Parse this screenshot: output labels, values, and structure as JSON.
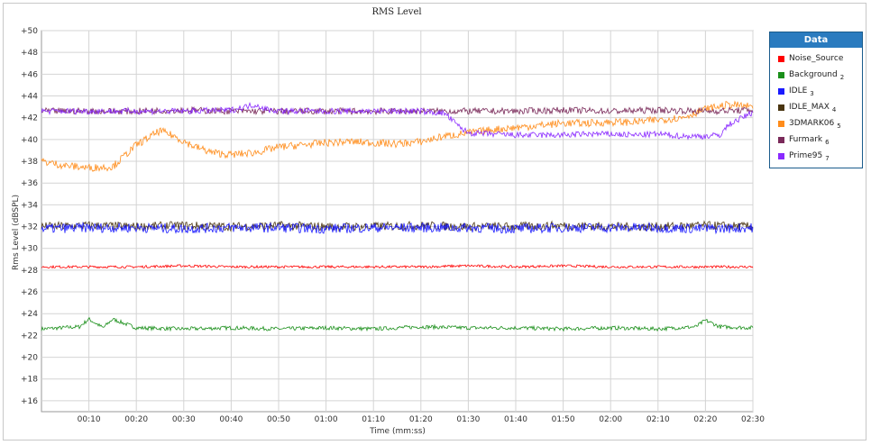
{
  "chart_data": {
    "type": "line",
    "title": "RMS Level",
    "xlabel": "Time (mm:ss)",
    "ylabel": "Rms Level (dBSPL)",
    "xlim": [
      0,
      150
    ],
    "ylim": [
      15,
      50
    ],
    "x_tick_values": [
      10,
      20,
      30,
      40,
      50,
      60,
      70,
      80,
      90,
      100,
      110,
      120,
      130,
      140,
      150
    ],
    "x_tick_labels": [
      "00:10",
      "00:20",
      "00:30",
      "00:40",
      "00:50",
      "01:00",
      "01:10",
      "01:20",
      "01:30",
      "01:40",
      "01:50",
      "02:00",
      "02:10",
      "02:20",
      "02:30"
    ],
    "y_tick_values": [
      16,
      18,
      20,
      22,
      24,
      26,
      28,
      30,
      32,
      34,
      36,
      38,
      40,
      42,
      44,
      46,
      48,
      50
    ],
    "y_tick_labels": [
      "+16",
      "+18",
      "+20",
      "+22",
      "+24",
      "+26",
      "+28",
      "+30",
      "+32",
      "+34",
      "+36",
      "+38",
      "+40",
      "+42",
      "+44",
      "+46",
      "+48",
      "+50"
    ],
    "grid": true,
    "legend_position": "right",
    "legend_title": "Data",
    "series": [
      {
        "name": "Noise_Source",
        "index": "",
        "color": "#ff0000",
        "x": [
          0,
          10,
          20,
          30,
          40,
          50,
          60,
          70,
          80,
          90,
          100,
          110,
          120,
          130,
          140,
          150
        ],
        "y": [
          28.3,
          28.3,
          28.3,
          28.4,
          28.3,
          28.3,
          28.3,
          28.3,
          28.3,
          28.4,
          28.3,
          28.4,
          28.3,
          28.3,
          28.3,
          28.3
        ]
      },
      {
        "name": "Background",
        "index": "2",
        "color": "#1a8f1a",
        "x": [
          0,
          8,
          10,
          13,
          15,
          20,
          30,
          40,
          50,
          60,
          70,
          80,
          90,
          100,
          110,
          120,
          130,
          138,
          140,
          143,
          150
        ],
        "y": [
          22.6,
          22.8,
          23.5,
          22.7,
          23.5,
          22.7,
          22.6,
          22.7,
          22.6,
          22.7,
          22.6,
          22.8,
          22.7,
          22.7,
          22.6,
          22.7,
          22.6,
          22.8,
          23.4,
          22.8,
          22.7
        ]
      },
      {
        "name": "IDLE",
        "index": "3",
        "color": "#1a1aff",
        "x": [
          0,
          10,
          20,
          30,
          40,
          50,
          60,
          70,
          80,
          90,
          100,
          110,
          120,
          130,
          140,
          150
        ],
        "y": [
          31.8,
          31.9,
          31.9,
          31.8,
          31.9,
          31.9,
          31.8,
          31.9,
          31.9,
          31.9,
          31.8,
          31.9,
          31.9,
          31.9,
          31.8,
          31.9
        ]
      },
      {
        "name": "IDLE_MAX",
        "index": "4",
        "color": "#4a3511",
        "x": [
          0,
          10,
          20,
          30,
          40,
          50,
          60,
          70,
          80,
          90,
          100,
          110,
          120,
          130,
          140,
          150
        ],
        "y": [
          32.0,
          32.1,
          32.0,
          32.1,
          32.0,
          32.1,
          32.0,
          32.0,
          32.1,
          32.0,
          32.0,
          32.1,
          32.0,
          32.0,
          32.1,
          32.0
        ]
      },
      {
        "name": "3DMARK06",
        "index": "5",
        "color": "#ff8c1a",
        "x": [
          0,
          5,
          10,
          15,
          20,
          25,
          28,
          32,
          36,
          40,
          45,
          50,
          55,
          60,
          65,
          70,
          75,
          80,
          85,
          90,
          95,
          100,
          105,
          110,
          115,
          120,
          125,
          130,
          135,
          140,
          145,
          150
        ],
        "y": [
          38.0,
          37.6,
          37.4,
          37.5,
          39.5,
          40.8,
          40.3,
          39.4,
          38.8,
          38.6,
          38.8,
          39.3,
          39.5,
          39.7,
          39.8,
          39.7,
          39.6,
          39.8,
          40.3,
          40.6,
          40.9,
          41.1,
          41.3,
          41.5,
          41.5,
          41.6,
          41.6,
          41.8,
          42.0,
          42.8,
          43.2,
          43.0
        ]
      },
      {
        "name": "Furmark",
        "index": "6",
        "color": "#7a2a5a",
        "x": [
          0,
          10,
          20,
          30,
          40,
          50,
          60,
          70,
          80,
          90,
          100,
          110,
          120,
          130,
          140,
          150
        ],
        "y": [
          42.6,
          42.6,
          42.6,
          42.7,
          42.6,
          42.6,
          42.6,
          42.6,
          42.6,
          42.6,
          42.6,
          42.7,
          42.6,
          42.7,
          42.6,
          42.7
        ]
      },
      {
        "name": "Prime95",
        "index": "7",
        "color": "#8a2aff",
        "x": [
          0,
          10,
          20,
          30,
          40,
          45,
          48,
          52,
          60,
          70,
          80,
          85,
          88,
          90,
          95,
          100,
          105,
          110,
          115,
          120,
          125,
          130,
          135,
          140,
          143,
          145,
          150
        ],
        "y": [
          42.6,
          42.6,
          42.6,
          42.6,
          42.7,
          43.2,
          42.7,
          42.6,
          42.6,
          42.6,
          42.6,
          42.4,
          41.2,
          40.6,
          40.5,
          40.4,
          40.4,
          40.4,
          40.5,
          40.5,
          40.4,
          40.5,
          40.3,
          40.3,
          40.4,
          41.4,
          42.5
        ]
      }
    ]
  }
}
